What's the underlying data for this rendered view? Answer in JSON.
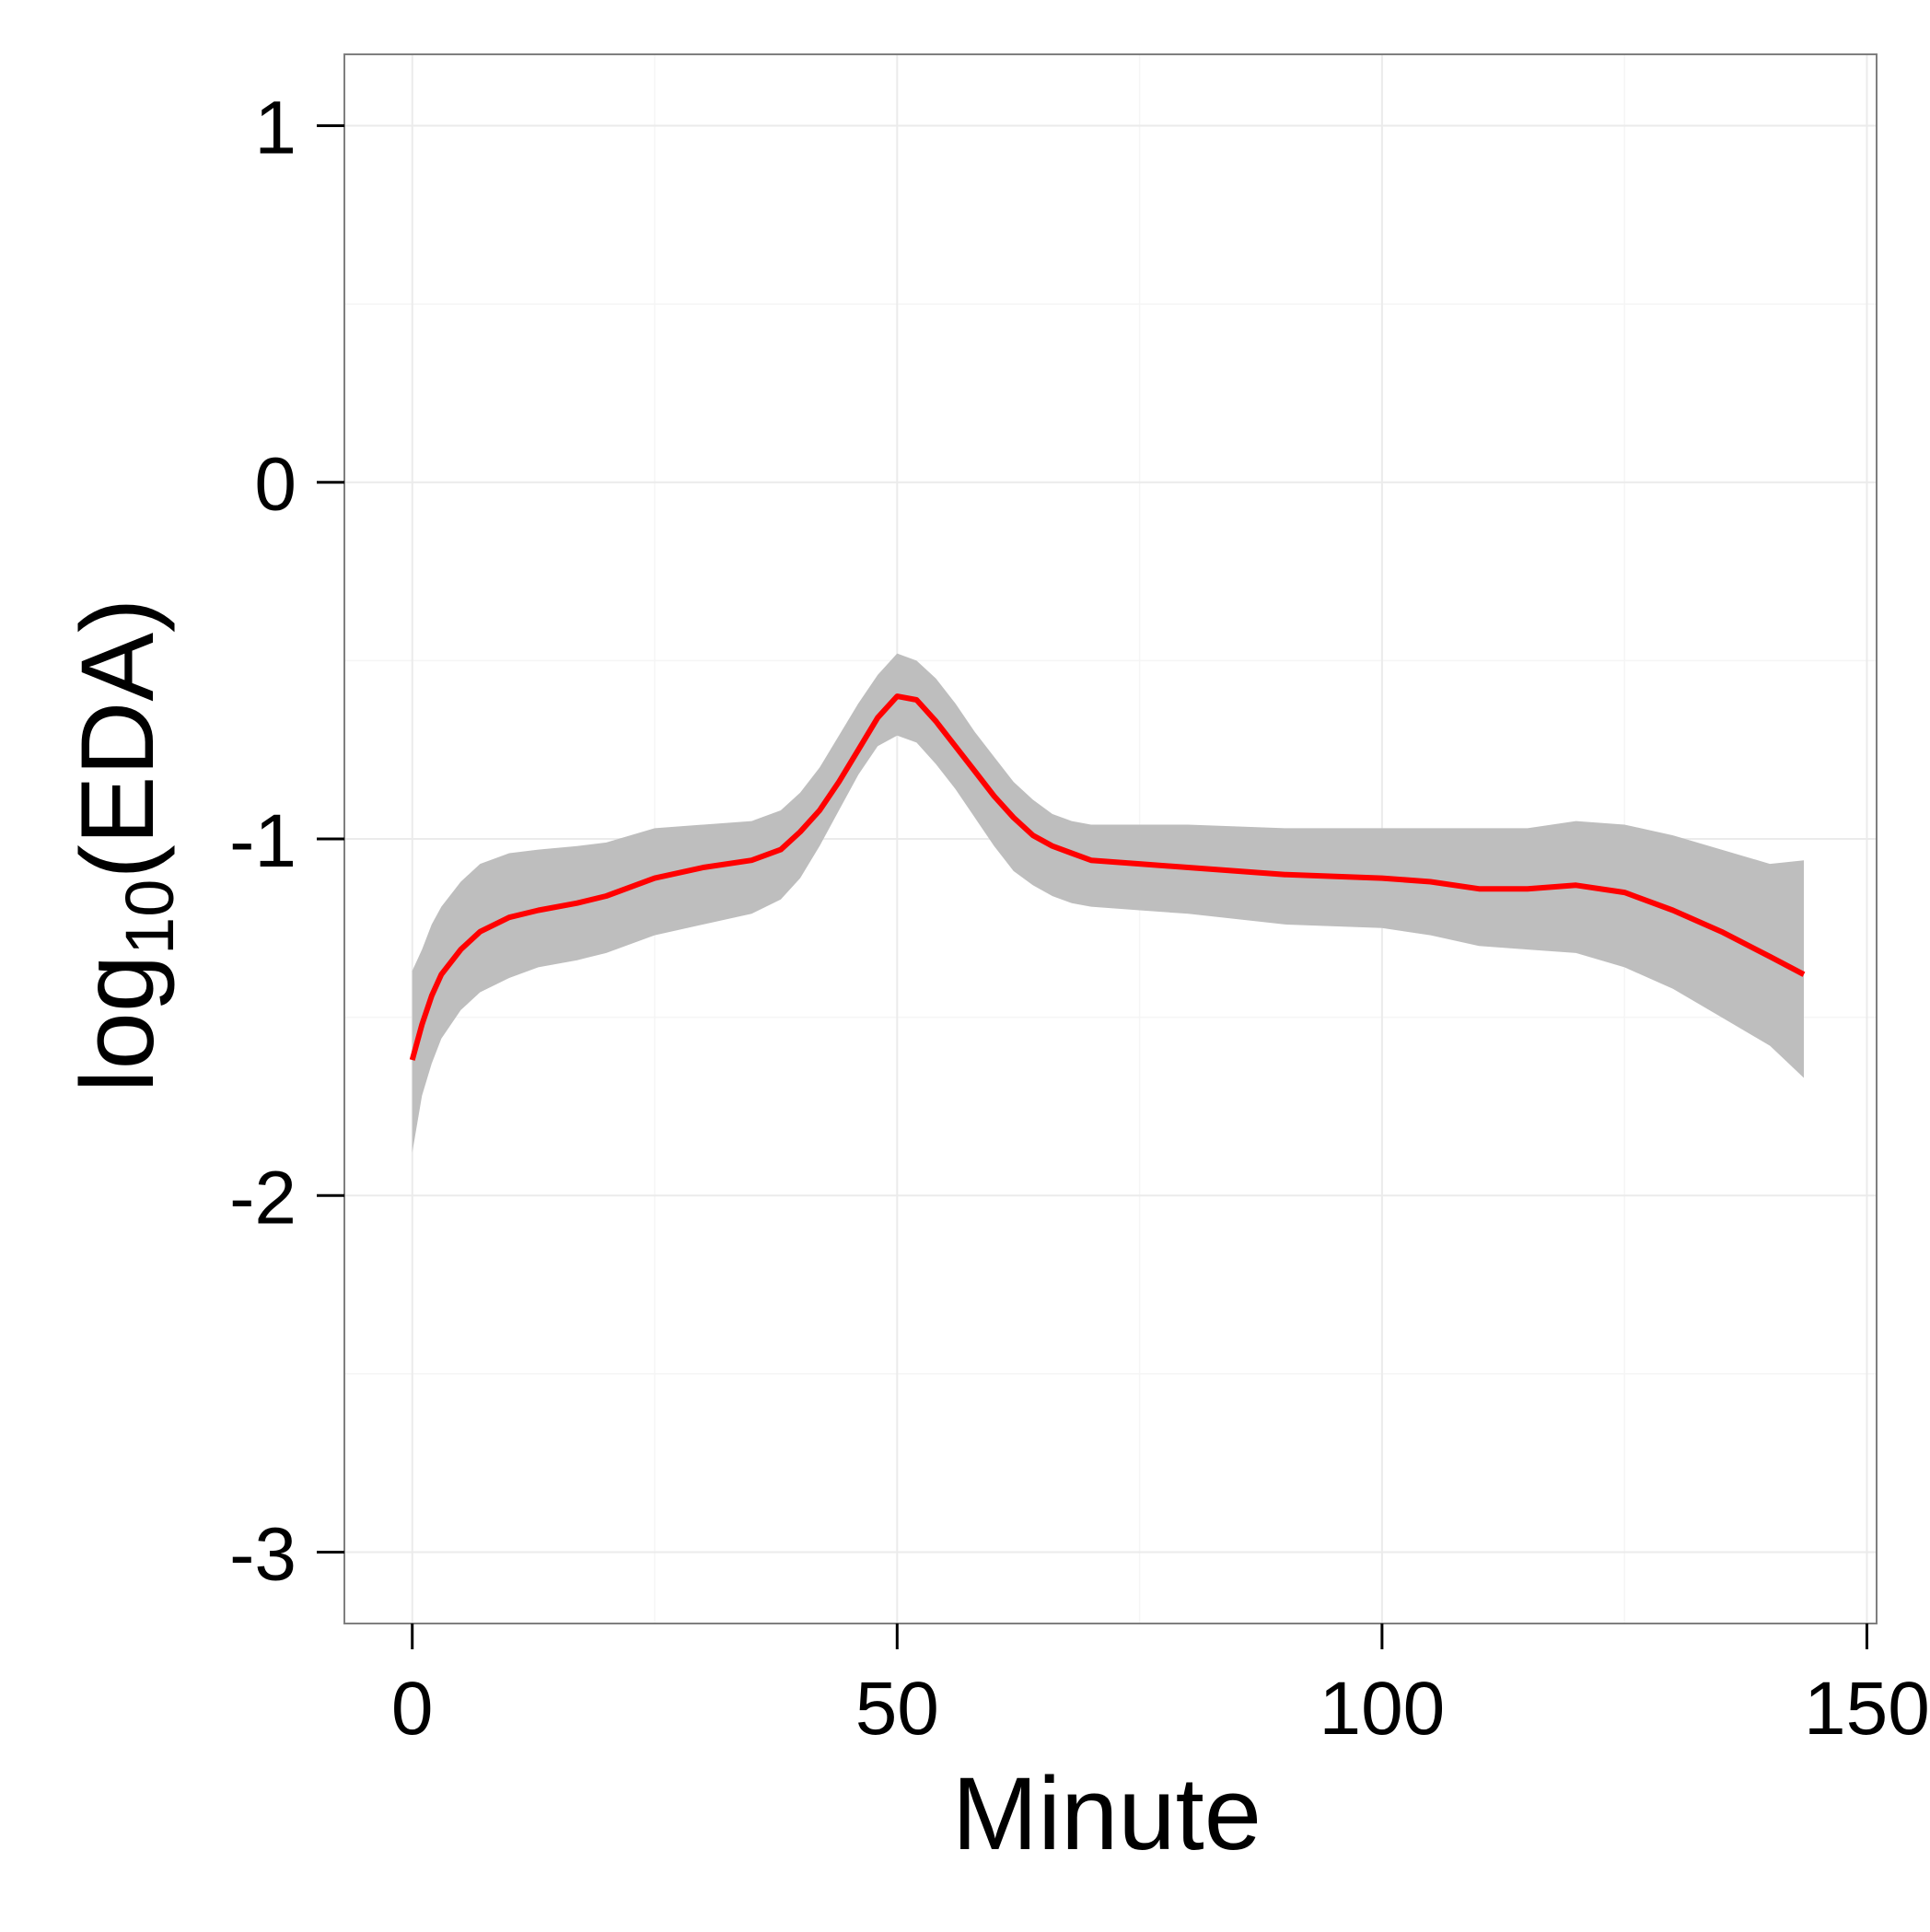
{
  "chart_data": {
    "type": "line",
    "xlabel": "Minute",
    "ylabel": {
      "base": "log",
      "subscript": "10",
      "rest": "(EDA)"
    },
    "xlim": [
      -7,
      151
    ],
    "ylim": [
      -3.2,
      1.2
    ],
    "x_ticks": [
      {
        "value": 0,
        "label": "0"
      },
      {
        "value": 50,
        "label": "50"
      },
      {
        "value": 100,
        "label": "100"
      },
      {
        "value": 150,
        "label": "150"
      }
    ],
    "y_ticks": [
      {
        "value": 1,
        "label": "1"
      },
      {
        "value": 0,
        "label": "0"
      },
      {
        "value": -1,
        "label": "-1"
      },
      {
        "value": -2,
        "label": "-2"
      },
      {
        "value": -3,
        "label": "-3"
      }
    ],
    "grid": true,
    "x_minor_grid": [
      25,
      75,
      125
    ],
    "y_minor_grid": [
      0.5,
      -0.5,
      -1.5,
      -2.5
    ],
    "colors": {
      "line": "#ff0000",
      "band": "#bebebe",
      "grid": "#ebebeb",
      "panel_border": "#7f7f7f"
    },
    "series": [
      {
        "x": [
          0,
          1,
          2,
          3,
          5,
          7,
          10,
          13,
          17,
          20,
          25,
          30,
          35,
          38,
          40,
          42,
          44,
          46,
          48,
          50,
          52,
          54,
          56,
          58,
          60,
          62,
          64,
          66,
          68,
          70,
          75,
          80,
          90,
          100,
          105,
          110,
          115,
          120,
          125,
          130,
          135,
          140,
          143.5
        ],
        "y": [
          -1.62,
          -1.52,
          -1.44,
          -1.38,
          -1.31,
          -1.26,
          -1.22,
          -1.2,
          -1.18,
          -1.16,
          -1.11,
          -1.08,
          -1.06,
          -1.03,
          -0.98,
          -0.92,
          -0.84,
          -0.75,
          -0.66,
          -0.6,
          -0.61,
          -0.67,
          -0.74,
          -0.81,
          -0.88,
          -0.94,
          -0.99,
          -1.02,
          -1.04,
          -1.06,
          -1.07,
          -1.08,
          -1.1,
          -1.11,
          -1.12,
          -1.14,
          -1.14,
          -1.13,
          -1.15,
          -1.2,
          -1.26,
          -1.33,
          -1.38
        ],
        "lower": [
          -1.88,
          -1.72,
          -1.63,
          -1.56,
          -1.48,
          -1.43,
          -1.39,
          -1.36,
          -1.34,
          -1.32,
          -1.27,
          -1.24,
          -1.21,
          -1.17,
          -1.11,
          -1.02,
          -0.92,
          -0.82,
          -0.74,
          -0.71,
          -0.73,
          -0.79,
          -0.86,
          -0.94,
          -1.02,
          -1.09,
          -1.13,
          -1.16,
          -1.18,
          -1.19,
          -1.2,
          -1.21,
          -1.24,
          -1.25,
          -1.27,
          -1.3,
          -1.31,
          -1.32,
          -1.36,
          -1.42,
          -1.5,
          -1.58,
          -1.67
        ],
        "upper": [
          -1.37,
          -1.31,
          -1.24,
          -1.19,
          -1.12,
          -1.07,
          -1.04,
          -1.03,
          -1.02,
          -1.01,
          -0.97,
          -0.96,
          -0.95,
          -0.92,
          -0.87,
          -0.8,
          -0.71,
          -0.62,
          -0.54,
          -0.48,
          -0.5,
          -0.55,
          -0.62,
          -0.7,
          -0.77,
          -0.84,
          -0.89,
          -0.93,
          -0.95,
          -0.96,
          -0.96,
          -0.96,
          -0.97,
          -0.97,
          -0.97,
          -0.97,
          -0.97,
          -0.95,
          -0.96,
          -0.99,
          -1.03,
          -1.07,
          -1.06
        ]
      }
    ]
  }
}
